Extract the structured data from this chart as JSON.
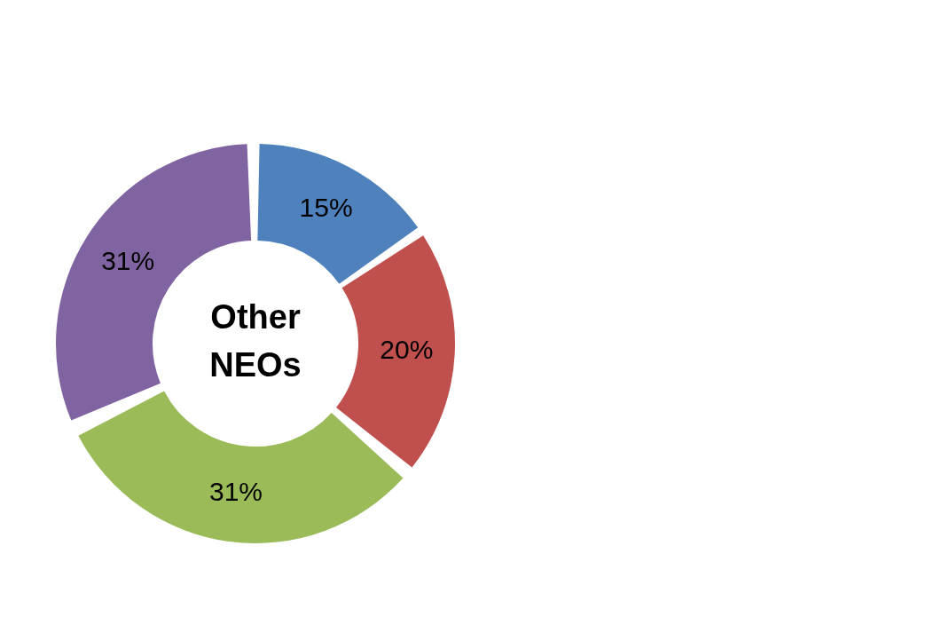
{
  "chart_data": {
    "type": "donut",
    "title": "Other NEOs",
    "categories": [
      null,
      null,
      null,
      null
    ],
    "values": [
      15,
      20,
      31,
      31
    ],
    "colors": [
      "#4f81bd",
      "#c0504d",
      "#9bbb59",
      "#8064a2"
    ],
    "value_labels": [
      "15%",
      "20%",
      "31%",
      "31%"
    ],
    "legend": false
  }
}
